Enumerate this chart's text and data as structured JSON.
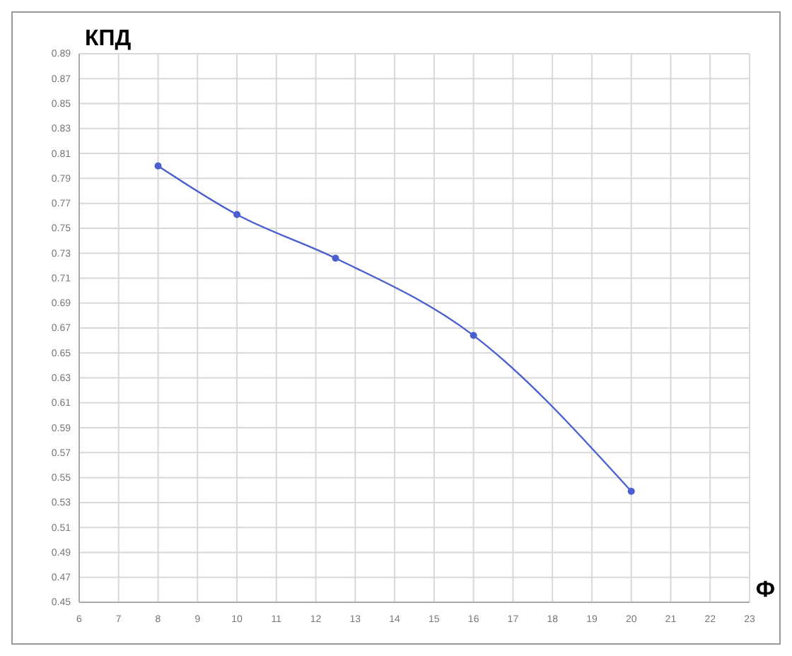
{
  "chart_data": {
    "type": "line",
    "xlabel": "Ф",
    "ylabel": "КПД",
    "x": [
      8,
      10,
      12.5,
      16,
      20
    ],
    "series": [
      {
        "color": "#4a5fd0",
        "values": [
          0.8,
          0.761,
          0.726,
          0.664,
          0.539
        ]
      }
    ],
    "xlim": [
      6,
      23
    ],
    "xticks": [
      6,
      7,
      8,
      9,
      10,
      11,
      12,
      13,
      14,
      15,
      16,
      17,
      18,
      19,
      20,
      21,
      22,
      23
    ],
    "ylim": [
      0.45,
      0.89
    ],
    "yticks": [
      0.45,
      0.47,
      0.49,
      0.51,
      0.53,
      0.55,
      0.57,
      0.59,
      0.61,
      0.63,
      0.65,
      0.67,
      0.69,
      0.71,
      0.73,
      0.75,
      0.77,
      0.79,
      0.81,
      0.83,
      0.85,
      0.87,
      0.89
    ],
    "grid": true,
    "marker": "circle",
    "line_style": "solid"
  }
}
